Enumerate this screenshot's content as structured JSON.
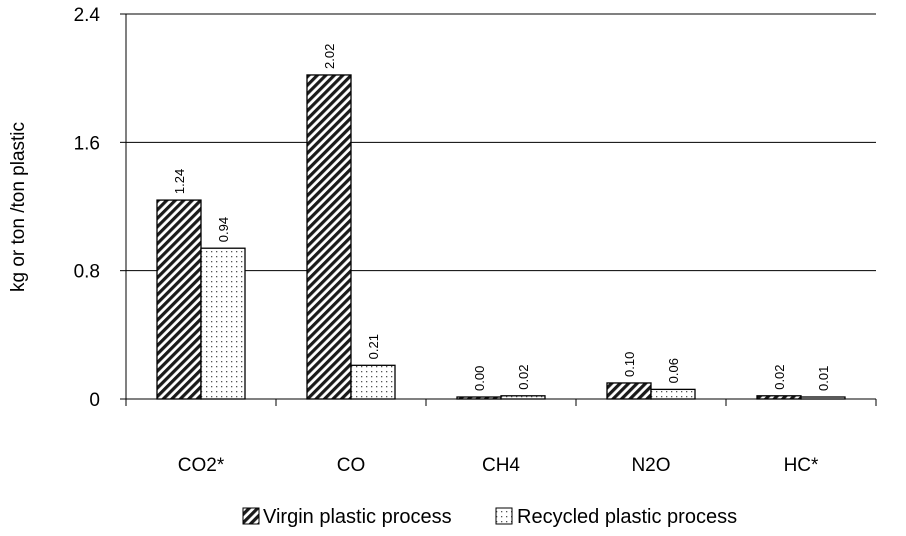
{
  "chart_data": {
    "type": "bar",
    "title": "",
    "xlabel": "",
    "ylabel": "kg or ton /ton plastic",
    "categories": [
      "CO2*",
      "CO",
      "CH4",
      "N2O",
      "HC*"
    ],
    "series": [
      {
        "name": "Virgin plastic process",
        "values": [
          1.24,
          2.02,
          0.0,
          0.1,
          0.02
        ],
        "labels": [
          "1.24",
          "2.02",
          "0.00",
          "0.10",
          "0.02"
        ],
        "pattern": "diagonal-hatch"
      },
      {
        "name": "Recycled plastic process",
        "values": [
          0.94,
          0.21,
          0.02,
          0.06,
          0.01
        ],
        "labels": [
          "0.94",
          "0.21",
          "0.02",
          "0.06",
          "0.01"
        ],
        "pattern": "dotted"
      }
    ],
    "ylim": [
      0,
      2.4
    ],
    "yticks": [
      "0",
      "0.8",
      "1.6",
      "2.4"
    ],
    "ytick_values": [
      0,
      0.8,
      1.6,
      2.4
    ],
    "grid": true,
    "legend_position": "bottom"
  }
}
